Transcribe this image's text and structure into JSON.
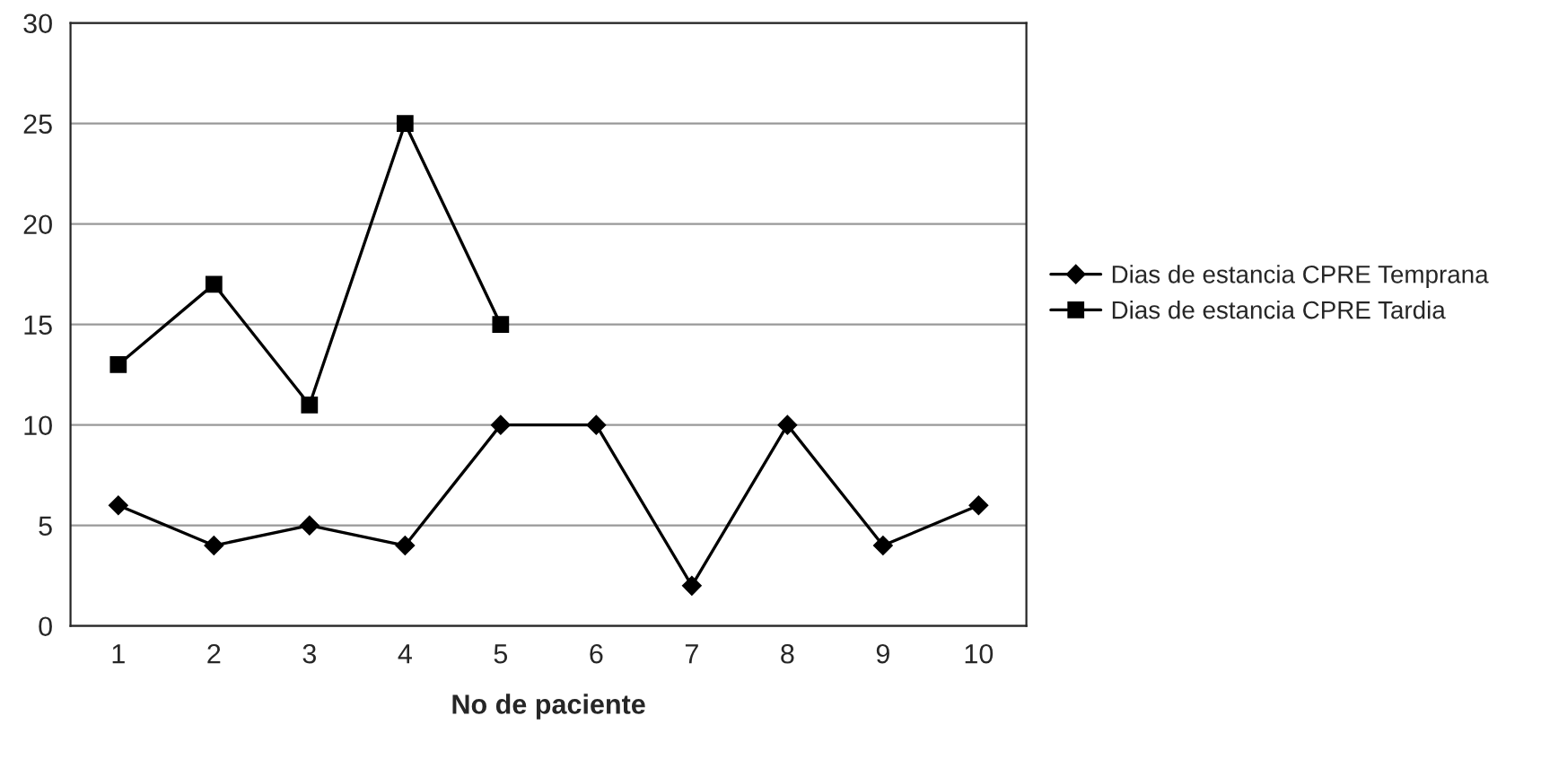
{
  "chart_data": {
    "type": "line",
    "xlabel": "No de paciente",
    "categories": [
      "1",
      "2",
      "3",
      "4",
      "5",
      "6",
      "7",
      "8",
      "9",
      "10"
    ],
    "series": [
      {
        "name": "Dias de estancia CPRE Temprana",
        "color": "#000000",
        "marker": "diamond",
        "values": [
          6,
          4,
          5,
          4,
          10,
          10,
          2,
          10,
          4,
          6
        ]
      },
      {
        "name": "Dias de estancia CPRE Tardia",
        "color": "#000000",
        "marker": "square",
        "values": [
          13,
          17,
          11,
          25,
          15,
          null,
          null,
          null,
          null,
          null
        ]
      }
    ],
    "ylim": [
      0,
      30
    ],
    "yticks": [
      0,
      5,
      10,
      15,
      20,
      25,
      30
    ],
    "grid": "y",
    "legend": "right",
    "line_style": "solid"
  }
}
